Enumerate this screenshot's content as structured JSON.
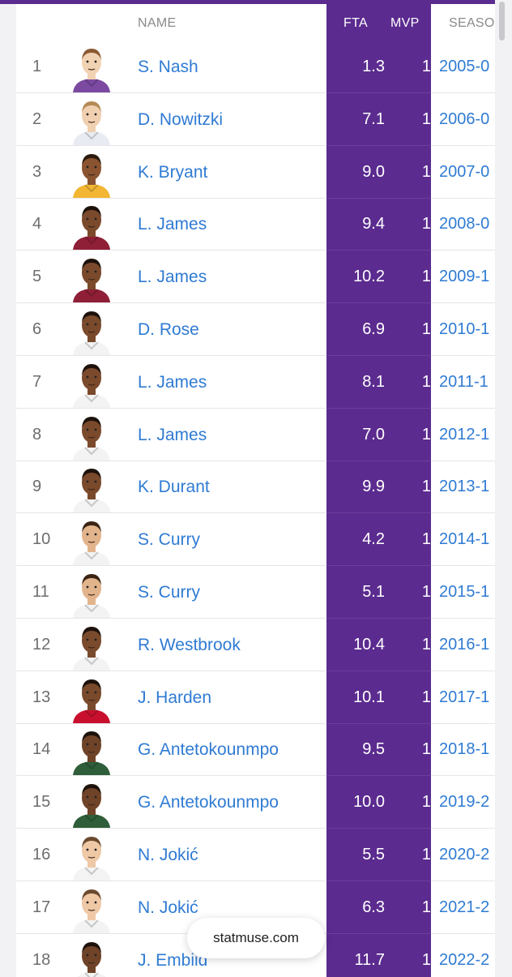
{
  "table": {
    "headers": {
      "name": "NAME",
      "fta": "FTA",
      "mvp": "MVP",
      "season": "SEASO"
    },
    "rows": [
      {
        "rank": "1",
        "name": "S. Nash",
        "fta": "1.3",
        "mvp": "1",
        "season": "2005-0",
        "jersey": "#7b4aa0",
        "skin": "#f1d2b3",
        "hair": "#8a5a33"
      },
      {
        "rank": "2",
        "name": "D. Nowitzki",
        "fta": "7.1",
        "mvp": "1",
        "season": "2006-0",
        "jersey": "#e8ecf2",
        "skin": "#f0d0b0",
        "hair": "#b58a55"
      },
      {
        "rank": "3",
        "name": "K. Bryant",
        "fta": "9.0",
        "mvp": "1",
        "season": "2007-0",
        "jersey": "#f2b632",
        "skin": "#8a5430",
        "hair": "#2b1a10"
      },
      {
        "rank": "4",
        "name": "L. James",
        "fta": "9.4",
        "mvp": "1",
        "season": "2008-0",
        "jersey": "#8e1f36",
        "skin": "#7b4a2c",
        "hair": "#1d120b"
      },
      {
        "rank": "5",
        "name": "L. James",
        "fta": "10.2",
        "mvp": "1",
        "season": "2009-1",
        "jersey": "#8e1f36",
        "skin": "#7b4a2c",
        "hair": "#1d120b"
      },
      {
        "rank": "6",
        "name": "D. Rose",
        "fta": "6.9",
        "mvp": "1",
        "season": "2010-1",
        "jersey": "#f3f3f3",
        "skin": "#7a4a2c",
        "hair": "#1d120b"
      },
      {
        "rank": "7",
        "name": "L. James",
        "fta": "8.1",
        "mvp": "1",
        "season": "2011-1",
        "jersey": "#f3f3f3",
        "skin": "#7b4a2c",
        "hair": "#1d120b"
      },
      {
        "rank": "8",
        "name": "L. James",
        "fta": "7.0",
        "mvp": "1",
        "season": "2012-1",
        "jersey": "#f3f3f3",
        "skin": "#7b4a2c",
        "hair": "#1d120b"
      },
      {
        "rank": "9",
        "name": "K. Durant",
        "fta": "9.9",
        "mvp": "1",
        "season": "2013-1",
        "jersey": "#f3f3f3",
        "skin": "#7a4a2c",
        "hair": "#1d120b"
      },
      {
        "rank": "10",
        "name": "S. Curry",
        "fta": "4.2",
        "mvp": "1",
        "season": "2014-1",
        "jersey": "#f3f3f3",
        "skin": "#e2b48c",
        "hair": "#3b2414"
      },
      {
        "rank": "11",
        "name": "S. Curry",
        "fta": "5.1",
        "mvp": "1",
        "season": "2015-1",
        "jersey": "#f3f3f3",
        "skin": "#e2b48c",
        "hair": "#3b2414"
      },
      {
        "rank": "12",
        "name": "R. Westbrook",
        "fta": "10.4",
        "mvp": "1",
        "season": "2016-1",
        "jersey": "#f3f3f3",
        "skin": "#7a4a2c",
        "hair": "#1d120b"
      },
      {
        "rank": "13",
        "name": "J. Harden",
        "fta": "10.1",
        "mvp": "1",
        "season": "2017-1",
        "jersey": "#c8102e",
        "skin": "#7a4a2c",
        "hair": "#1d120b"
      },
      {
        "rank": "14",
        "name": "G. Antetokounmpo",
        "fta": "9.5",
        "mvp": "1",
        "season": "2018-1",
        "jersey": "#2e5e3a",
        "skin": "#6f4328",
        "hair": "#1d120b"
      },
      {
        "rank": "15",
        "name": "G. Antetokounmpo",
        "fta": "10.0",
        "mvp": "1",
        "season": "2019-2",
        "jersey": "#2e5e3a",
        "skin": "#6f4328",
        "hair": "#1d120b"
      },
      {
        "rank": "16",
        "name": "N. Jokić",
        "fta": "5.5",
        "mvp": "1",
        "season": "2020-2",
        "jersey": "#f3f3f3",
        "skin": "#efc8a6",
        "hair": "#6b4a2e"
      },
      {
        "rank": "17",
        "name": "N. Jokić",
        "fta": "6.3",
        "mvp": "1",
        "season": "2021-2",
        "jersey": "#f3f3f3",
        "skin": "#efc8a6",
        "hair": "#6b4a2e"
      },
      {
        "rank": "18",
        "name": "J. Embiid",
        "fta": "11.7",
        "mvp": "1",
        "season": "2022-2",
        "jersey": "#f3f3f3",
        "skin": "#6f4328",
        "hair": "#1d120b"
      }
    ]
  },
  "watermark": {
    "label": "statmuse.com"
  },
  "colors": {
    "accent_purple": "#5b2b8f",
    "link_blue": "#2f7bd3"
  }
}
